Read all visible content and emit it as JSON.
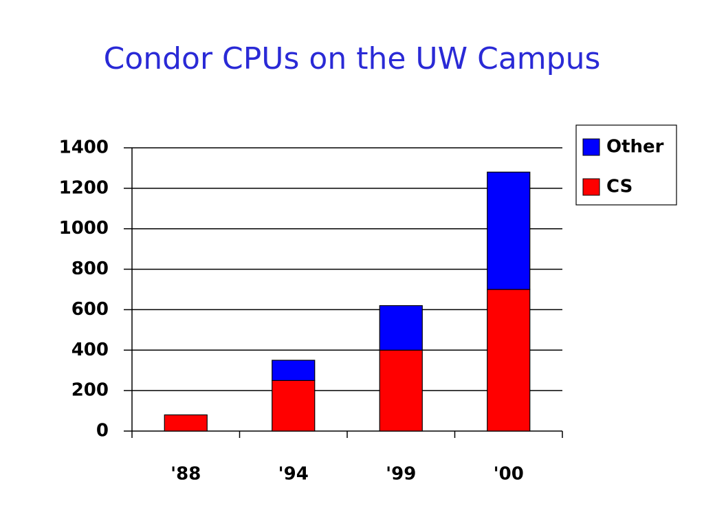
{
  "chart_data": {
    "type": "stacked_bar",
    "title": "Condor CPUs on the UW Campus",
    "categories": [
      "'88",
      "'94",
      "'99",
      "'00"
    ],
    "series": [
      {
        "name": "CS",
        "color": "#ff0000",
        "values": [
          80,
          250,
          400,
          700
        ]
      },
      {
        "name": "Other",
        "color": "#0000ff",
        "values": [
          0,
          100,
          220,
          580
        ]
      }
    ],
    "ylim": [
      0,
      1400
    ],
    "yticks": [
      0,
      200,
      400,
      600,
      800,
      1000,
      1200,
      1400
    ],
    "grid": true,
    "legend": "right"
  }
}
